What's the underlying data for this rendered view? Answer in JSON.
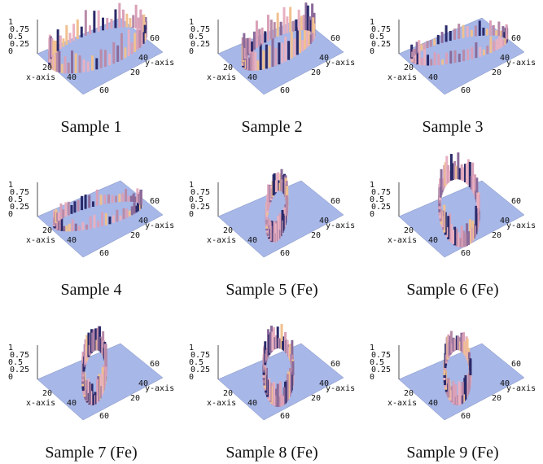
{
  "plot_axes": {
    "x_label": "x-axis",
    "y_label": "y-axis",
    "x_ticks": [
      "20",
      "40",
      "60"
    ],
    "y_ticks": [
      "20",
      "40",
      "60"
    ],
    "z_ticks": [
      "0",
      "0.25",
      "0.5",
      "0.75",
      "1"
    ]
  },
  "panels": [
    {
      "caption": "Sample 1"
    },
    {
      "caption": "Sample 2"
    },
    {
      "caption": "Sample 3"
    },
    {
      "caption": "Sample 4"
    },
    {
      "caption": "Sample 5 (Fe)"
    },
    {
      "caption": "Sample 6 (Fe)"
    },
    {
      "caption": "Sample 7 (Fe)"
    },
    {
      "caption": "Sample 8 (Fe)"
    },
    {
      "caption": "Sample 9 (Fe)"
    }
  ]
}
